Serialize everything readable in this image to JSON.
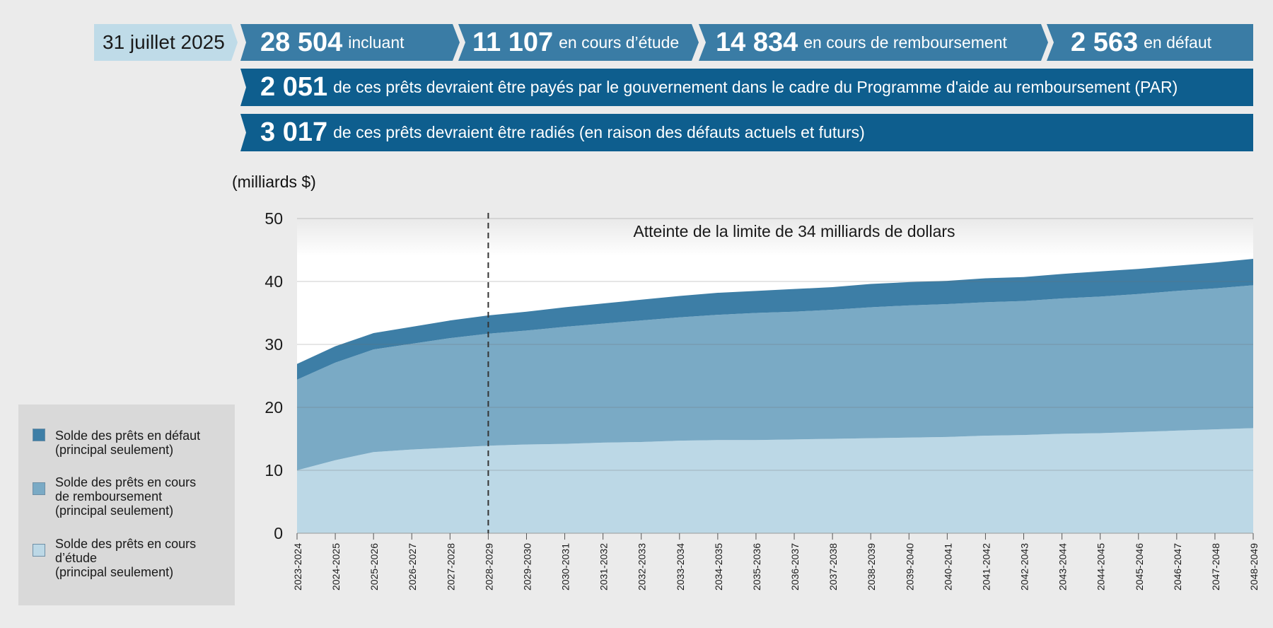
{
  "header": {
    "date": "31 juillet 2025",
    "stats": [
      {
        "value": "28 504",
        "label": "incluant"
      },
      {
        "value": "11 107",
        "label": "en cours d’étude"
      },
      {
        "value": "14 834",
        "label": "en cours de remboursement"
      },
      {
        "value": "2 563",
        "label": "en défaut"
      }
    ],
    "bars": [
      {
        "value": "2 051",
        "label": "de ces prêts devraient être payés par le gouvernement dans le cadre du Programme d'aide au remboursement (PAR)"
      },
      {
        "value": "3 017",
        "label": "de ces prêts devraient être radiés (en raison des défauts actuels et futurs)"
      }
    ]
  },
  "colors": {
    "default": "#3d7ea6",
    "repayment": "#7aaac5",
    "study": "#bcd8e6",
    "header_chevron": "#3a7ca5",
    "header_bar": "#0e5e8e"
  },
  "chart_data": {
    "type": "area",
    "stacked": true,
    "ylabel": "(milliards $)",
    "ylim": [
      0,
      50
    ],
    "yticks": [
      0,
      10,
      20,
      30,
      40,
      50
    ],
    "categories": [
      "2023-2024",
      "2024-2025",
      "2025-2026",
      "2026-2027",
      "2027-2028",
      "2028-2029",
      "2029-2030",
      "2030-2031",
      "2031-2032",
      "2032-2033",
      "2033-2034",
      "2034-2035",
      "2035-2036",
      "2036-2037",
      "2037-2038",
      "2038-2039",
      "2039-2040",
      "2040-2041",
      "2041-2042",
      "2042-2043",
      "2043-2044",
      "2044-2045",
      "2045-2046",
      "2046-2047",
      "2047-2048",
      "2048-2049"
    ],
    "series": [
      {
        "name": "Solde des prêts en cours d’étude (principal seulement)",
        "key": "study",
        "values": [
          10,
          11.6,
          12.9,
          13.3,
          13.6,
          13.9,
          14.1,
          14.2,
          14.4,
          14.5,
          14.7,
          14.8,
          14.8,
          14.9,
          15.0,
          15.1,
          15.2,
          15.3,
          15.5,
          15.6,
          15.8,
          15.9,
          16.1,
          16.3,
          16.5,
          16.7
        ]
      },
      {
        "name": "Solde des prêts en cours de remboursement (principal seulement)",
        "key": "repayment",
        "values": [
          14.4,
          15.5,
          16.3,
          16.8,
          17.4,
          17.8,
          18.1,
          18.6,
          18.9,
          19.3,
          19.6,
          19.9,
          20.2,
          20.3,
          20.5,
          20.8,
          21.0,
          21.1,
          21.2,
          21.3,
          21.5,
          21.7,
          21.9,
          22.2,
          22.4,
          22.7
        ]
      },
      {
        "name": "Solde des prêts en défaut (principal seulement)",
        "key": "default",
        "values": [
          2.5,
          2.6,
          2.6,
          2.7,
          2.8,
          2.9,
          3.0,
          3.1,
          3.2,
          3.3,
          3.4,
          3.5,
          3.5,
          3.6,
          3.6,
          3.7,
          3.7,
          3.7,
          3.8,
          3.8,
          3.9,
          4.0,
          4.0,
          4.0,
          4.1,
          4.2
        ]
      }
    ],
    "vline": {
      "at": "2028-2029",
      "style": "dashed"
    },
    "annotation": "Atteinte de la limite de 34 milliards de dollars",
    "grid": true,
    "legend_position": "left"
  },
  "legend": [
    {
      "label": "Solde des prêts en défaut\n(principal seulement)",
      "key": "default"
    },
    {
      "label": "Solde des prêts en cours\nde remboursement\n(principal seulement)",
      "key": "repayment"
    },
    {
      "label": "Solde des prêts en cours\nd’étude\n(principal seulement)",
      "key": "study"
    }
  ]
}
